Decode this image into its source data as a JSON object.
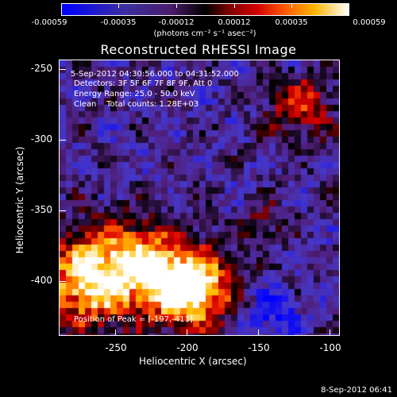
{
  "colorbar": {
    "tick_labels": [
      "-0.00059",
      "-0.00035",
      "-0.00012",
      "0.00012",
      "0.00035",
      "0.00059"
    ],
    "units": "(photons cm⁻² s⁻¹ asec⁻²)",
    "colors": [
      "#0000ff",
      "#4b1b6b",
      "#000000",
      "#b40000",
      "#ff7800",
      "#ffffff"
    ]
  },
  "title": "Reconstructed RHESSI Image",
  "annotations": {
    "time_range": "5-Sep-2012 04:30:56.000 to 04:31:52.000",
    "detectors": "Detectors: 3F 5F 6F 7F 8F 9F, Att 0",
    "energy": "Energy Range: 25.0 - 50.0 keV",
    "method": "Clean    Total counts: 1.28E+03",
    "peak": "Position of Peak = [-197,-411]"
  },
  "axes": {
    "xlabel": "Heliocentric X (arcsec)",
    "ylabel": "Heliocentric Y (arcsec)",
    "x_ticks": [
      "-250",
      "-200",
      "-150",
      "-100"
    ],
    "y_ticks": [
      "-250",
      "-300",
      "-350",
      "-400"
    ],
    "x_range": [
      -290,
      -95
    ],
    "y_range": [
      -440,
      -245
    ]
  },
  "footer": {
    "timestamp": "8-Sep-2012 06:41"
  }
}
